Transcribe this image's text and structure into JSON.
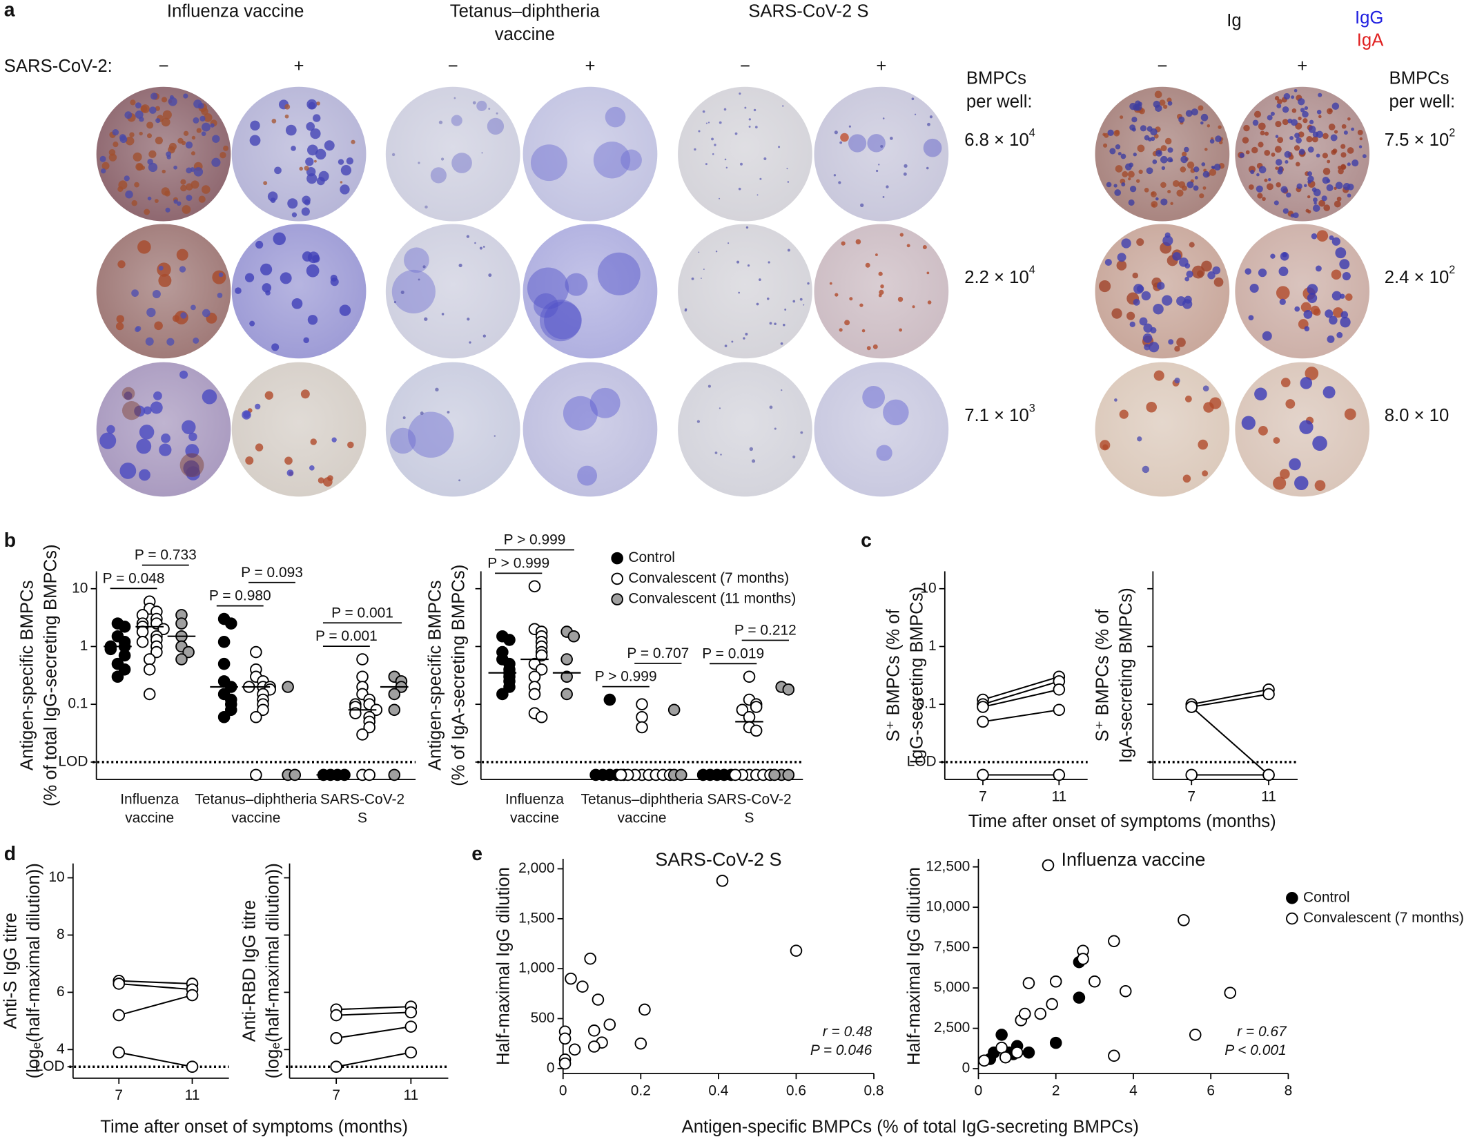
{
  "panel_letters": {
    "a": "a",
    "b": "b",
    "c": "c",
    "d": "d",
    "e": "e"
  },
  "panel_a": {
    "columns": [
      [
        "Influenza vaccine"
      ],
      [
        "Tetanus–diphtheria",
        "vaccine"
      ],
      [
        "SARS-CoV-2 S"
      ]
    ],
    "ig_title": "Ig",
    "ig_legend": [
      "IgG",
      "IgA"
    ],
    "row_label": "SARS-CoV-2:",
    "signs": [
      "−",
      "+",
      "−",
      "+",
      "−",
      "+",
      "−",
      "+"
    ],
    "counts_title": [
      "BMPCs",
      "per well:"
    ],
    "counts": [
      {
        "base": "6.8 × 10",
        "exp": "4"
      },
      {
        "base": "2.2 × 10",
        "exp": "4"
      },
      {
        "base": "7.1 × 10",
        "exp": "3"
      }
    ],
    "ig_counts_title": [
      "BMPCs",
      "per well:"
    ],
    "ig_counts": [
      {
        "base": "7.5 × 10",
        "exp": "2"
      },
      {
        "base": "2.4 × 10",
        "exp": "2"
      },
      {
        "base": "8.0 × 10"
      }
    ]
  },
  "shared_labels": {
    "c_xlabel": "Time after onset of symptoms (months)",
    "d_xlabel": "Time after onset of symptoms (months)",
    "e_xlabel": "Antigen-specific BMPCs (% of total IgG-secreting BMPCs)"
  },
  "chart_data": [
    {
      "type": "strip",
      "ylabel": [
        "Antigen-specific BMPCs",
        "(% of total IgG-secreting BMPCs)"
      ],
      "log_y": true,
      "ylim": [
        0.005,
        20
      ],
      "yticks": [
        10,
        1,
        0.1,
        {
          "value": 0.01,
          "label": "LOD"
        }
      ],
      "lod_line": 0.01,
      "categories": [
        [
          "Influenza",
          "vaccine"
        ],
        [
          "Tetanus–diphtheria",
          "vaccine"
        ],
        [
          "SARS-CoV-2",
          "S"
        ]
      ],
      "series": [
        {
          "fill": "#000000",
          "values": [
            [
              2.5,
              2.2,
              1.5,
              1.2,
              1.0,
              1.0,
              0.9,
              0.7,
              0.5,
              0.4,
              0.3
            ],
            [
              3,
              2.5,
              1.2,
              0.5,
              0.25,
              0.2,
              0.15,
              0.12,
              0.1,
              0.08,
              0.06
            ],
            [
              0.006,
              0.006,
              0.006,
              0.006
            ]
          ],
          "medians": [
            1.0,
            0.2,
            0.006
          ]
        },
        {
          "fill": "#ffffff",
          "values": [
            [
              6,
              4.5,
              4,
              3.5,
              3,
              2.5,
              2.5,
              2.2,
              2,
              1.8,
              1.5,
              1.3,
              1.2,
              1,
              0.8,
              0.6,
              0.4,
              0.15
            ],
            [
              0.8,
              0.4,
              0.3,
              0.25,
              0.2,
              0.2,
              0.2,
              0.18,
              0.15,
              0.12,
              0.1,
              0.08,
              0.06,
              0.006
            ],
            [
              0.6,
              0.3,
              0.2,
              0.15,
              0.12,
              0.1,
              0.1,
              0.09,
              0.08,
              0.07,
              0.06,
              0.05,
              0.04,
              0.03,
              0.006,
              0.006
            ]
          ],
          "medians": [
            2.2,
            0.2,
            0.08
          ]
        },
        {
          "fill": "#a0a0a0",
          "values": [
            [
              3.5,
              2.5,
              1.5,
              1,
              0.8,
              0.6
            ],
            [
              0.2,
              0.006,
              0.006
            ],
            [
              0.3,
              0.25,
              0.2,
              0.15,
              0.08,
              0.006
            ]
          ],
          "medians": [
            1.5,
            null,
            0.2
          ]
        }
      ],
      "brackets": [
        {
          "category": 0,
          "from": 0,
          "to": 1,
          "label": "P = 0.048"
        },
        {
          "category": 0,
          "from": 1,
          "to": 2,
          "label": "P = 0.733"
        },
        {
          "category": 1,
          "from": 0,
          "to": 1,
          "label": "P = 0.980"
        },
        {
          "category": 1,
          "from": 1,
          "to": 2,
          "label": "P = 0.093"
        },
        {
          "category": 2,
          "from": 0,
          "to": 1,
          "label": "P = 0.001"
        },
        {
          "category": 2,
          "from": 0,
          "to": 2,
          "label": "P = 0.001"
        }
      ]
    },
    {
      "type": "strip",
      "ylabel": [
        "Antigen-specific BMPCs",
        "(% of IgA-secreting BMPCs)"
      ],
      "log_y": true,
      "tick_labels": false,
      "ylim": [
        0.005,
        20
      ],
      "yticks": [
        10,
        1,
        0.1,
        0.01
      ],
      "lod_line": 0.01,
      "legend": "top-right",
      "categories": [
        [
          "Influenza",
          "vaccine"
        ],
        [
          "Tetanus–diphtheria",
          "vaccine"
        ],
        [
          "SARS-CoV-2",
          "S"
        ]
      ],
      "series": [
        {
          "name": "Control",
          "fill": "#000000",
          "values": [
            [
              1.5,
              1.3,
              0.8,
              0.6,
              0.5,
              0.4,
              0.35,
              0.3,
              0.25,
              0.2,
              0.15
            ],
            [
              0.12,
              0.006,
              0.006,
              0.006,
              0.006,
              0.006
            ],
            [
              0.006,
              0.006,
              0.006,
              0.006,
              0.006
            ]
          ],
          "medians": [
            0.35,
            null,
            null
          ]
        },
        {
          "name": "Convalescent (7 months)",
          "fill": "#ffffff",
          "values": [
            [
              11,
              2,
              1.8,
              1.5,
              1.2,
              1,
              0.8,
              0.7,
              0.5,
              0.4,
              0.3,
              0.2,
              0.15,
              0.07,
              0.06
            ],
            [
              0.1,
              0.06,
              0.04,
              0.006,
              0.006,
              0.006,
              0.006,
              0.006,
              0.006,
              0.006,
              0.006
            ],
            [
              0.3,
              0.12,
              0.1,
              0.09,
              0.08,
              0.06,
              0.04,
              0.035,
              0.006,
              0.006,
              0.006,
              0.006,
              0.006,
              0.006
            ]
          ],
          "medians": [
            0.6,
            null,
            0.05
          ]
        },
        {
          "name": "Convalescent (11 months)",
          "fill": "#a0a0a0",
          "values": [
            [
              1.8,
              1.5,
              0.6,
              0.3,
              0.15
            ],
            [
              0.08,
              0.006,
              0.006
            ],
            [
              0.2,
              0.18,
              0.006,
              0.006,
              0.006
            ]
          ],
          "medians": [
            0.35,
            null,
            null
          ]
        }
      ],
      "brackets": [
        {
          "category": 0,
          "from": 0,
          "to": 1,
          "label": "P > 0.999"
        },
        {
          "category": 0,
          "from": 0,
          "to": 2,
          "label": "P > 0.999"
        },
        {
          "category": 1,
          "from": 0,
          "to": 1,
          "label": "P > 0.999"
        },
        {
          "category": 1,
          "from": 1,
          "to": 2,
          "label": "P = 0.707"
        },
        {
          "category": 2,
          "from": 0,
          "to": 1,
          "label": "P = 0.019"
        },
        {
          "category": 2,
          "from": 1,
          "to": 2,
          "label": "P = 0.212"
        }
      ]
    },
    {
      "type": "paired",
      "ylabel": [
        "S⁺ BMPCs (% of",
        "IgG-secreting BMPCs)"
      ],
      "log_y": true,
      "ylim": [
        0.005,
        20
      ],
      "yticks": [
        10,
        1,
        0.1,
        {
          "value": 0.01,
          "label": "LOD"
        }
      ],
      "lod_line": 0.01,
      "xlim": [
        5,
        12.5
      ],
      "xticks": [
        7,
        11
      ],
      "x": [
        7,
        11
      ],
      "series": [
        {
          "values": [
            0.12,
            0.3
          ]
        },
        {
          "values": [
            0.1,
            0.25
          ]
        },
        {
          "values": [
            0.09,
            0.18
          ]
        },
        {
          "values": [
            0.05,
            0.08
          ]
        },
        {
          "values": [
            0.006,
            0.006
          ]
        }
      ]
    },
    {
      "type": "paired",
      "ylabel": [
        "S⁺ BMPCs (% of",
        "IgA-secreting BMPCs)"
      ],
      "log_y": true,
      "tick_labels": false,
      "ylim": [
        0.005,
        20
      ],
      "yticks": [
        10,
        1,
        0.1,
        0.01
      ],
      "lod_line": 0.01,
      "xlim": [
        5,
        12.5
      ],
      "xticks": [
        7,
        11
      ],
      "x": [
        7,
        11
      ],
      "series": [
        {
          "values": [
            0.1,
            0.18
          ]
        },
        {
          "values": [
            0.09,
            0.15
          ]
        },
        {
          "values": [
            0.09,
            0.006
          ]
        },
        {
          "values": [
            0.006,
            0.006
          ]
        }
      ]
    },
    {
      "type": "paired",
      "ylabel": [
        "Anti-S IgG titre",
        "(logₑ(half-maximal dilution))"
      ],
      "log_y": false,
      "ylim": [
        3,
        10.5
      ],
      "yticks": [
        {
          "value": 3.4,
          "label": "LOD"
        },
        4,
        6,
        8,
        10
      ],
      "lod_line": 3.4,
      "xlim": [
        4.5,
        13
      ],
      "xticks": [
        7,
        11
      ],
      "x": [
        7,
        11
      ],
      "series": [
        {
          "values": [
            6.4,
            6.3
          ]
        },
        {
          "values": [
            6.3,
            6.1
          ]
        },
        {
          "values": [
            5.2,
            5.9
          ]
        },
        {
          "values": [
            3.9,
            3.4
          ]
        }
      ]
    },
    {
      "type": "paired",
      "ylabel": [
        "Anti-RBD IgG titre",
        "(logₑ(half-maximal dilution))"
      ],
      "log_y": false,
      "tick_labels": false,
      "ylim": [
        3,
        10.5
      ],
      "yticks": [
        4,
        6,
        8,
        10
      ],
      "lod_line": 3.4,
      "xlim": [
        4.5,
        13
      ],
      "xticks": [
        7,
        11
      ],
      "x": [
        7,
        11
      ],
      "series": [
        {
          "values": [
            5.4,
            5.5
          ]
        },
        {
          "values": [
            5.2,
            5.3
          ]
        },
        {
          "values": [
            4.4,
            4.8
          ]
        },
        {
          "values": [
            3.4,
            3.9
          ]
        }
      ]
    },
    {
      "type": "scatter",
      "title": "SARS-CoV-2 S",
      "ylabel": [
        "Half-maximal IgG dilution"
      ],
      "xlim": [
        0,
        0.8
      ],
      "xticks": [
        0,
        0.2,
        0.4,
        0.6,
        0.8
      ],
      "ylim": [
        -50,
        2100
      ],
      "yticks": [
        0,
        500,
        {
          "value": 1000,
          "label": "1,000"
        },
        {
          "value": 1500,
          "label": "1,500"
        },
        {
          "value": 2000,
          "label": "2,000"
        }
      ],
      "series": [
        {
          "fill": "#ffffff",
          "x": [
            0.41,
            0.6,
            0.07,
            0.02,
            0.05,
            0.09,
            0.21,
            0.12,
            0.08,
            0.1,
            0.08,
            0.2,
            0.03,
            0.005,
            0.005,
            0.005,
            0.005
          ],
          "y": [
            1880,
            1180,
            1100,
            900,
            820,
            690,
            590,
            440,
            380,
            260,
            220,
            250,
            190,
            370,
            300,
            90,
            50
          ]
        }
      ],
      "annotations": [
        "r = 0.48",
        "P = 0.046"
      ]
    },
    {
      "type": "scatter",
      "title": "Influenza vaccine",
      "ylabel": [
        "Half-maximal IgG dilution"
      ],
      "legend": "top-right",
      "xlim": [
        0,
        8
      ],
      "xticks": [
        0,
        2,
        4,
        6,
        8
      ],
      "ylim": [
        -300,
        13000
      ],
      "yticks": [
        0,
        {
          "value": 2500,
          "label": "2,500"
        },
        {
          "value": 5000,
          "label": "5,000"
        },
        {
          "value": 7500,
          "label": "7,500"
        },
        {
          "value": 10000,
          "label": "10,000"
        },
        {
          "value": 12500,
          "label": "12,500"
        }
      ],
      "series": [
        {
          "name": "Control",
          "fill": "#000000",
          "x": [
            0.3,
            0.4,
            0.6,
            0.8,
            0.9,
            1,
            1.3,
            2,
            2.6,
            2.6
          ],
          "y": [
            600,
            1000,
            2100,
            1000,
            900,
            1400,
            1000,
            1600,
            4400,
            6600
          ]
        },
        {
          "name": "Convalescent (7 months)",
          "fill": "#ffffff",
          "x": [
            0.15,
            0.6,
            0.7,
            1,
            1.1,
            1.2,
            1.6,
            1.3,
            1.9,
            2,
            1.8,
            2.7,
            2.7,
            3,
            3.5,
            3.8,
            3.5,
            5.3,
            5.6,
            6.5
          ],
          "y": [
            500,
            1300,
            700,
            1000,
            3000,
            3400,
            3400,
            5300,
            4000,
            5400,
            12600,
            7300,
            6800,
            5400,
            7900,
            4800,
            800,
            9200,
            2100,
            4700
          ]
        }
      ],
      "annotations": [
        "r = 0.67",
        "P < 0.001"
      ]
    }
  ]
}
